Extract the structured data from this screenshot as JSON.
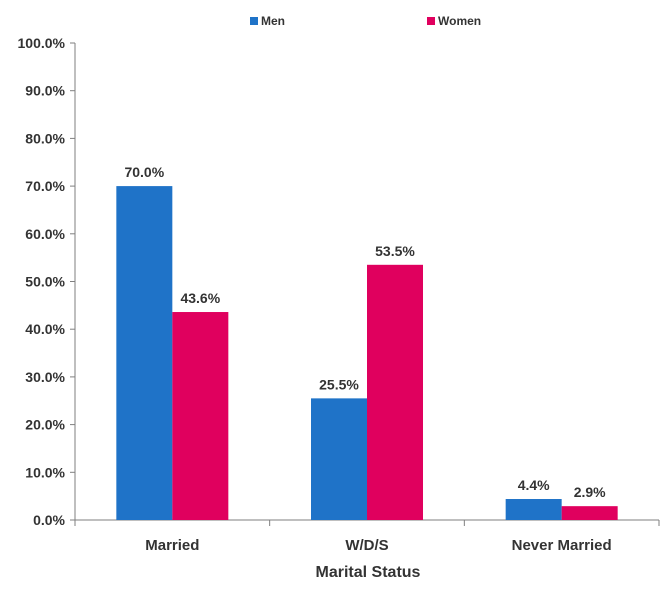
{
  "chart_data": {
    "type": "bar",
    "categories": [
      "Married",
      "W/D/S",
      "Never Married"
    ],
    "series": [
      {
        "name": "Men",
        "color": "#1f73c8",
        "values": [
          70.0,
          25.5,
          4.4
        ],
        "labels": [
          "70.0%",
          "25.5%",
          "4.4%"
        ]
      },
      {
        "name": "Women",
        "color": "#e0005e",
        "values": [
          43.6,
          53.5,
          2.9
        ],
        "labels": [
          "43.6%",
          "53.5%",
          "2.9%"
        ]
      }
    ],
    "xlabel": "Marital Status",
    "ylabel": "",
    "ylim": [
      0,
      100
    ],
    "yticks": [
      0,
      10,
      20,
      30,
      40,
      50,
      60,
      70,
      80,
      90,
      100
    ],
    "ytick_labels": [
      "0.0%",
      "10.0%",
      "20.0%",
      "30.0%",
      "40.0%",
      "50.0%",
      "60.0%",
      "70.0%",
      "80.0%",
      "90.0%",
      "100.0%"
    ],
    "grid": false,
    "legend": "top"
  }
}
